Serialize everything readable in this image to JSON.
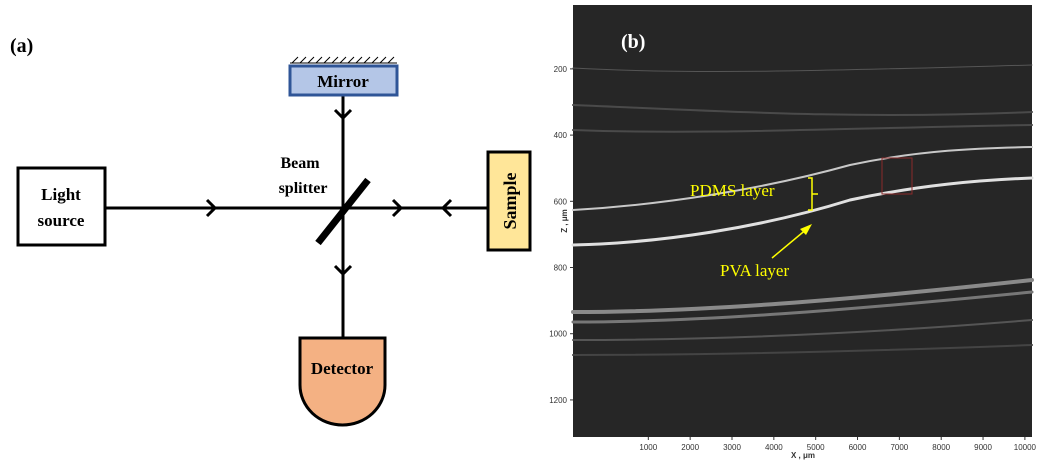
{
  "panel_a": {
    "label": "(a)",
    "light_source": [
      "Light",
      "source"
    ],
    "mirror": "Mirror",
    "beam_splitter": [
      "Beam",
      "splitter"
    ],
    "sample": "Sample",
    "detector": "Detector"
  },
  "panel_b": {
    "label": "(b)",
    "x_axis_label": "X , μm",
    "y_axis_label": "Z , μm",
    "annotations": {
      "pdms": "PDMS layer",
      "pva": "PVA layer"
    },
    "xlim": [
      -800,
      10170
    ],
    "ylim": [
      7,
      1312
    ],
    "xticks": [
      1000,
      2000,
      3000,
      4000,
      5000,
      6000,
      7000,
      8000,
      9000,
      10000
    ],
    "yticks": [
      200,
      400,
      600,
      800,
      1000,
      1200
    ]
  }
}
